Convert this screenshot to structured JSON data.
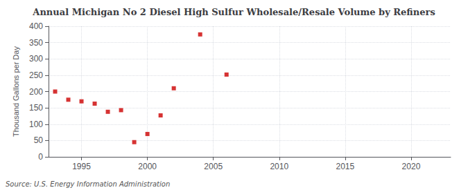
{
  "chart_data": {
    "type": "scatter",
    "title": "Annual Michigan No 2 Diesel High Sulfur Wholesale/Resale Volume by Refiners",
    "ylabel": "Thousand Gallons per Day",
    "annotation": "Source: U.S. Energy Information Administration",
    "x": [
      1993,
      1994,
      1995,
      1996,
      1997,
      1998,
      1999,
      2000,
      2001,
      2002,
      2004,
      2006
    ],
    "values": [
      200,
      175,
      170,
      163,
      138,
      143,
      45,
      70,
      127,
      210,
      375,
      252
    ],
    "color": "#cc0000",
    "marker": "square",
    "xlim": [
      1992.5,
      2023
    ],
    "ylim": [
      0,
      400
    ],
    "xticks": [
      1995,
      2000,
      2005,
      2010,
      2015,
      2020
    ],
    "yticks": [
      0,
      50,
      100,
      150,
      200,
      250,
      300,
      350,
      400
    ],
    "grid": true
  }
}
